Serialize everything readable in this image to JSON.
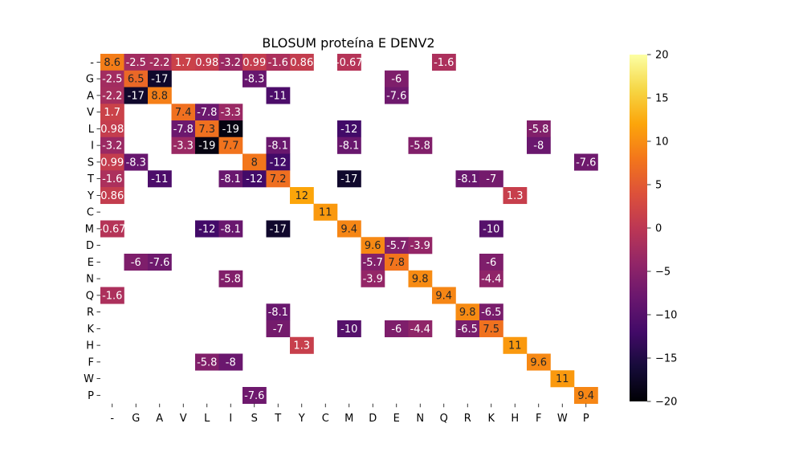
{
  "chart_data": {
    "type": "heatmap",
    "title": "BLOSUM proteína E DENV2",
    "xlabel": "",
    "ylabel": "",
    "labels": [
      "-",
      "G",
      "A",
      "V",
      "L",
      "I",
      "S",
      "T",
      "Y",
      "C",
      "M",
      "D",
      "E",
      "N",
      "Q",
      "R",
      "K",
      "H",
      "F",
      "W",
      "P"
    ],
    "colormap": "inferno",
    "vmin": -20,
    "vmax": 20,
    "colorbar_ticks": [
      "20",
      "15",
      "10",
      "5",
      "0",
      "−5",
      "−10",
      "−15",
      "−20"
    ],
    "colorbar_tick_values": [
      20,
      15,
      10,
      5,
      0,
      -5,
      -10,
      -15,
      -20
    ],
    "cells": [
      {
        "row": "-",
        "col": "-",
        "value": 8.6,
        "label": "8.6"
      },
      {
        "row": "-",
        "col": "G",
        "value": -2.5,
        "label": "-2.5"
      },
      {
        "row": "-",
        "col": "A",
        "value": -2.2,
        "label": "-2.2"
      },
      {
        "row": "-",
        "col": "V",
        "value": 1.7,
        "label": "1.7"
      },
      {
        "row": "-",
        "col": "L",
        "value": 0.98,
        "label": "0.98"
      },
      {
        "row": "-",
        "col": "I",
        "value": -3.2,
        "label": "-3.2"
      },
      {
        "row": "-",
        "col": "S",
        "value": 0.99,
        "label": "0.99"
      },
      {
        "row": "-",
        "col": "T",
        "value": -1.6,
        "label": "-1.6"
      },
      {
        "row": "-",
        "col": "Y",
        "value": 0.86,
        "label": "0.86"
      },
      {
        "row": "-",
        "col": "M",
        "value": -0.67,
        "label": "-0.67"
      },
      {
        "row": "-",
        "col": "Q",
        "value": -1.6,
        "label": "-1.6"
      },
      {
        "row": "G",
        "col": "-",
        "value": -2.5,
        "label": "-2.5"
      },
      {
        "row": "G",
        "col": "G",
        "value": 6.5,
        "label": "6.5"
      },
      {
        "row": "G",
        "col": "A",
        "value": -17,
        "label": "-17"
      },
      {
        "row": "G",
        "col": "S",
        "value": -8.3,
        "label": "-8.3"
      },
      {
        "row": "G",
        "col": "E",
        "value": -6,
        "label": "-6"
      },
      {
        "row": "A",
        "col": "-",
        "value": -2.2,
        "label": "-2.2"
      },
      {
        "row": "A",
        "col": "G",
        "value": -17,
        "label": "-17"
      },
      {
        "row": "A",
        "col": "A",
        "value": 8.8,
        "label": "8.8"
      },
      {
        "row": "A",
        "col": "T",
        "value": -11,
        "label": "-11"
      },
      {
        "row": "A",
        "col": "E",
        "value": -7.6,
        "label": "-7.6"
      },
      {
        "row": "V",
        "col": "-",
        "value": 1.7,
        "label": "1.7"
      },
      {
        "row": "V",
        "col": "V",
        "value": 7.4,
        "label": "7.4"
      },
      {
        "row": "V",
        "col": "L",
        "value": -7.8,
        "label": "-7.8"
      },
      {
        "row": "V",
        "col": "I",
        "value": -3.3,
        "label": "-3.3"
      },
      {
        "row": "L",
        "col": "-",
        "value": 0.98,
        "label": "0.98"
      },
      {
        "row": "L",
        "col": "V",
        "value": -7.8,
        "label": "-7.8"
      },
      {
        "row": "L",
        "col": "L",
        "value": 7.3,
        "label": "7.3"
      },
      {
        "row": "L",
        "col": "I",
        "value": -19,
        "label": "-19"
      },
      {
        "row": "L",
        "col": "M",
        "value": -12,
        "label": "-12"
      },
      {
        "row": "L",
        "col": "F",
        "value": -5.8,
        "label": "-5.8"
      },
      {
        "row": "I",
        "col": "-",
        "value": -3.2,
        "label": "-3.2"
      },
      {
        "row": "I",
        "col": "V",
        "value": -3.3,
        "label": "-3.3"
      },
      {
        "row": "I",
        "col": "L",
        "value": -19,
        "label": "-19"
      },
      {
        "row": "I",
        "col": "I",
        "value": 7.7,
        "label": "7.7"
      },
      {
        "row": "I",
        "col": "T",
        "value": -8.1,
        "label": "-8.1"
      },
      {
        "row": "I",
        "col": "M",
        "value": -8.1,
        "label": "-8.1"
      },
      {
        "row": "I",
        "col": "N",
        "value": -5.8,
        "label": "-5.8"
      },
      {
        "row": "I",
        "col": "F",
        "value": -8,
        "label": "-8"
      },
      {
        "row": "S",
        "col": "-",
        "value": 0.99,
        "label": "0.99"
      },
      {
        "row": "S",
        "col": "G",
        "value": -8.3,
        "label": "-8.3"
      },
      {
        "row": "S",
        "col": "S",
        "value": 8,
        "label": "8"
      },
      {
        "row": "S",
        "col": "T",
        "value": -12,
        "label": "-12"
      },
      {
        "row": "S",
        "col": "P",
        "value": -7.6,
        "label": "-7.6"
      },
      {
        "row": "T",
        "col": "-",
        "value": -1.6,
        "label": "-1.6"
      },
      {
        "row": "T",
        "col": "A",
        "value": -11,
        "label": "-11"
      },
      {
        "row": "T",
        "col": "I",
        "value": -8.1,
        "label": "-8.1"
      },
      {
        "row": "T",
        "col": "S",
        "value": -12,
        "label": "-12"
      },
      {
        "row": "T",
        "col": "T",
        "value": 7.2,
        "label": "7.2"
      },
      {
        "row": "T",
        "col": "M",
        "value": -17,
        "label": "-17"
      },
      {
        "row": "T",
        "col": "R",
        "value": -8.1,
        "label": "-8.1"
      },
      {
        "row": "T",
        "col": "K",
        "value": -7,
        "label": "-7"
      },
      {
        "row": "Y",
        "col": "-",
        "value": 0.86,
        "label": "0.86"
      },
      {
        "row": "Y",
        "col": "Y",
        "value": 12,
        "label": "12"
      },
      {
        "row": "Y",
        "col": "H",
        "value": 1.3,
        "label": "1.3"
      },
      {
        "row": "C",
        "col": "C",
        "value": 11,
        "label": "11"
      },
      {
        "row": "M",
        "col": "-",
        "value": -0.67,
        "label": "-0.67"
      },
      {
        "row": "M",
        "col": "L",
        "value": -12,
        "label": "-12"
      },
      {
        "row": "M",
        "col": "I",
        "value": -8.1,
        "label": "-8.1"
      },
      {
        "row": "M",
        "col": "T",
        "value": -17,
        "label": "-17"
      },
      {
        "row": "M",
        "col": "M",
        "value": 9.4,
        "label": "9.4"
      },
      {
        "row": "M",
        "col": "K",
        "value": -10,
        "label": "-10"
      },
      {
        "row": "D",
        "col": "D",
        "value": 9.6,
        "label": "9.6"
      },
      {
        "row": "D",
        "col": "E",
        "value": -5.7,
        "label": "-5.7"
      },
      {
        "row": "D",
        "col": "N",
        "value": -3.9,
        "label": "-3.9"
      },
      {
        "row": "E",
        "col": "G",
        "value": -6,
        "label": "-6"
      },
      {
        "row": "E",
        "col": "A",
        "value": -7.6,
        "label": "-7.6"
      },
      {
        "row": "E",
        "col": "D",
        "value": -5.7,
        "label": "-5.7"
      },
      {
        "row": "E",
        "col": "E",
        "value": 7.8,
        "label": "7.8"
      },
      {
        "row": "E",
        "col": "K",
        "value": -6,
        "label": "-6"
      },
      {
        "row": "N",
        "col": "I",
        "value": -5.8,
        "label": "-5.8"
      },
      {
        "row": "N",
        "col": "D",
        "value": -3.9,
        "label": "-3.9"
      },
      {
        "row": "N",
        "col": "N",
        "value": 9.8,
        "label": "9.8"
      },
      {
        "row": "N",
        "col": "K",
        "value": -4.4,
        "label": "-4.4"
      },
      {
        "row": "Q",
        "col": "-",
        "value": -1.6,
        "label": "-1.6"
      },
      {
        "row": "Q",
        "col": "Q",
        "value": 9.4,
        "label": "9.4"
      },
      {
        "row": "R",
        "col": "T",
        "value": -8.1,
        "label": "-8.1"
      },
      {
        "row": "R",
        "col": "R",
        "value": 9.8,
        "label": "9.8"
      },
      {
        "row": "R",
        "col": "K",
        "value": -6.5,
        "label": "-6.5"
      },
      {
        "row": "K",
        "col": "T",
        "value": -7,
        "label": "-7"
      },
      {
        "row": "K",
        "col": "M",
        "value": -10,
        "label": "-10"
      },
      {
        "row": "K",
        "col": "E",
        "value": -6,
        "label": "-6"
      },
      {
        "row": "K",
        "col": "N",
        "value": -4.4,
        "label": "-4.4"
      },
      {
        "row": "K",
        "col": "R",
        "value": -6.5,
        "label": "-6.5"
      },
      {
        "row": "K",
        "col": "K",
        "value": 7.5,
        "label": "7.5"
      },
      {
        "row": "H",
        "col": "Y",
        "value": 1.3,
        "label": "1.3"
      },
      {
        "row": "H",
        "col": "H",
        "value": 11,
        "label": "11"
      },
      {
        "row": "F",
        "col": "L",
        "value": -5.8,
        "label": "-5.8"
      },
      {
        "row": "F",
        "col": "I",
        "value": -8,
        "label": "-8"
      },
      {
        "row": "F",
        "col": "F",
        "value": 9.6,
        "label": "9.6"
      },
      {
        "row": "W",
        "col": "W",
        "value": 11,
        "label": "11"
      },
      {
        "row": "P",
        "col": "S",
        "value": -7.6,
        "label": "-7.6"
      },
      {
        "row": "P",
        "col": "P",
        "value": 9.4,
        "label": "9.4"
      }
    ]
  }
}
